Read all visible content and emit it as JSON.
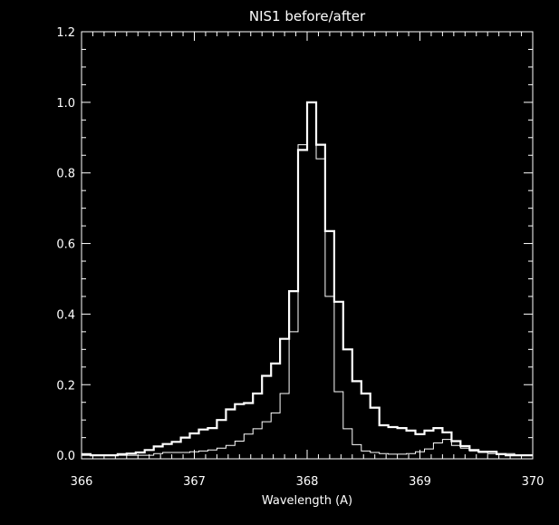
{
  "colors": {
    "background": "#000000",
    "foreground": "#ffffff"
  },
  "chart_data": {
    "type": "line",
    "step": true,
    "title": "NIS1 before/after",
    "xlabel": "Wavelength (A)",
    "ylabel": "",
    "xlim": [
      366,
      370
    ],
    "ylim": [
      -0.01,
      1.2
    ],
    "xticks": [
      "366",
      "367",
      "368",
      "369",
      "370"
    ],
    "yticks": [
      "0.0",
      "0.2",
      "0.4",
      "0.6",
      "0.8",
      "1.0",
      "1.2"
    ],
    "grid": false,
    "legend": "none",
    "series": [
      {
        "style": "thick",
        "x": [
          366.0,
          366.08,
          366.16,
          366.24,
          366.32,
          366.4,
          366.48,
          366.56,
          366.64,
          366.72,
          366.8,
          366.88,
          366.96,
          367.04,
          367.12,
          367.2,
          367.28,
          367.36,
          367.44,
          367.52,
          367.6,
          367.68,
          367.76,
          367.84,
          367.92,
          368.0,
          368.08,
          368.16,
          368.24,
          368.32,
          368.4,
          368.48,
          368.56,
          368.64,
          368.72,
          368.8,
          368.88,
          368.96,
          369.04,
          369.12,
          369.2,
          369.28,
          369.36,
          369.44,
          369.52,
          369.6,
          369.68,
          369.76,
          369.84,
          369.92
        ],
        "y": [
          0.003,
          0.0,
          0.0,
          0.0,
          0.003,
          0.005,
          0.008,
          0.015,
          0.025,
          0.032,
          0.038,
          0.05,
          0.062,
          0.073,
          0.077,
          0.1,
          0.13,
          0.145,
          0.148,
          0.175,
          0.225,
          0.26,
          0.33,
          0.465,
          0.865,
          1.0,
          0.88,
          0.635,
          0.435,
          0.3,
          0.21,
          0.175,
          0.135,
          0.085,
          0.08,
          0.077,
          0.07,
          0.06,
          0.07,
          0.077,
          0.065,
          0.04,
          0.026,
          0.015,
          0.01,
          0.01,
          0.003,
          0.0,
          0.0,
          0.0
        ]
      },
      {
        "style": "thin",
        "x": [
          366.0,
          366.08,
          366.16,
          366.24,
          366.32,
          366.4,
          366.48,
          366.56,
          366.64,
          366.72,
          366.8,
          366.88,
          366.96,
          367.04,
          367.12,
          367.2,
          367.28,
          367.36,
          367.44,
          367.52,
          367.6,
          367.68,
          367.76,
          367.84,
          367.92,
          368.0,
          368.08,
          368.16,
          368.24,
          368.32,
          368.4,
          368.48,
          368.56,
          368.64,
          368.72,
          368.8,
          368.88,
          368.96,
          369.04,
          369.12,
          369.2,
          369.28,
          369.36,
          369.44,
          369.52,
          369.6,
          369.68,
          369.76,
          369.84,
          369.92
        ],
        "y": [
          0.0,
          0.0,
          0.0,
          0.0,
          0.0,
          0.0,
          0.0,
          0.0,
          0.005,
          0.008,
          0.008,
          0.008,
          0.01,
          0.012,
          0.015,
          0.02,
          0.028,
          0.04,
          0.06,
          0.075,
          0.095,
          0.12,
          0.175,
          0.35,
          0.88,
          1.0,
          0.84,
          0.45,
          0.18,
          0.075,
          0.03,
          0.012,
          0.008,
          0.005,
          0.003,
          0.003,
          0.005,
          0.01,
          0.018,
          0.035,
          0.045,
          0.028,
          0.02,
          0.012,
          0.008,
          0.005,
          0.005,
          0.005,
          0.0,
          0.0
        ]
      }
    ]
  }
}
